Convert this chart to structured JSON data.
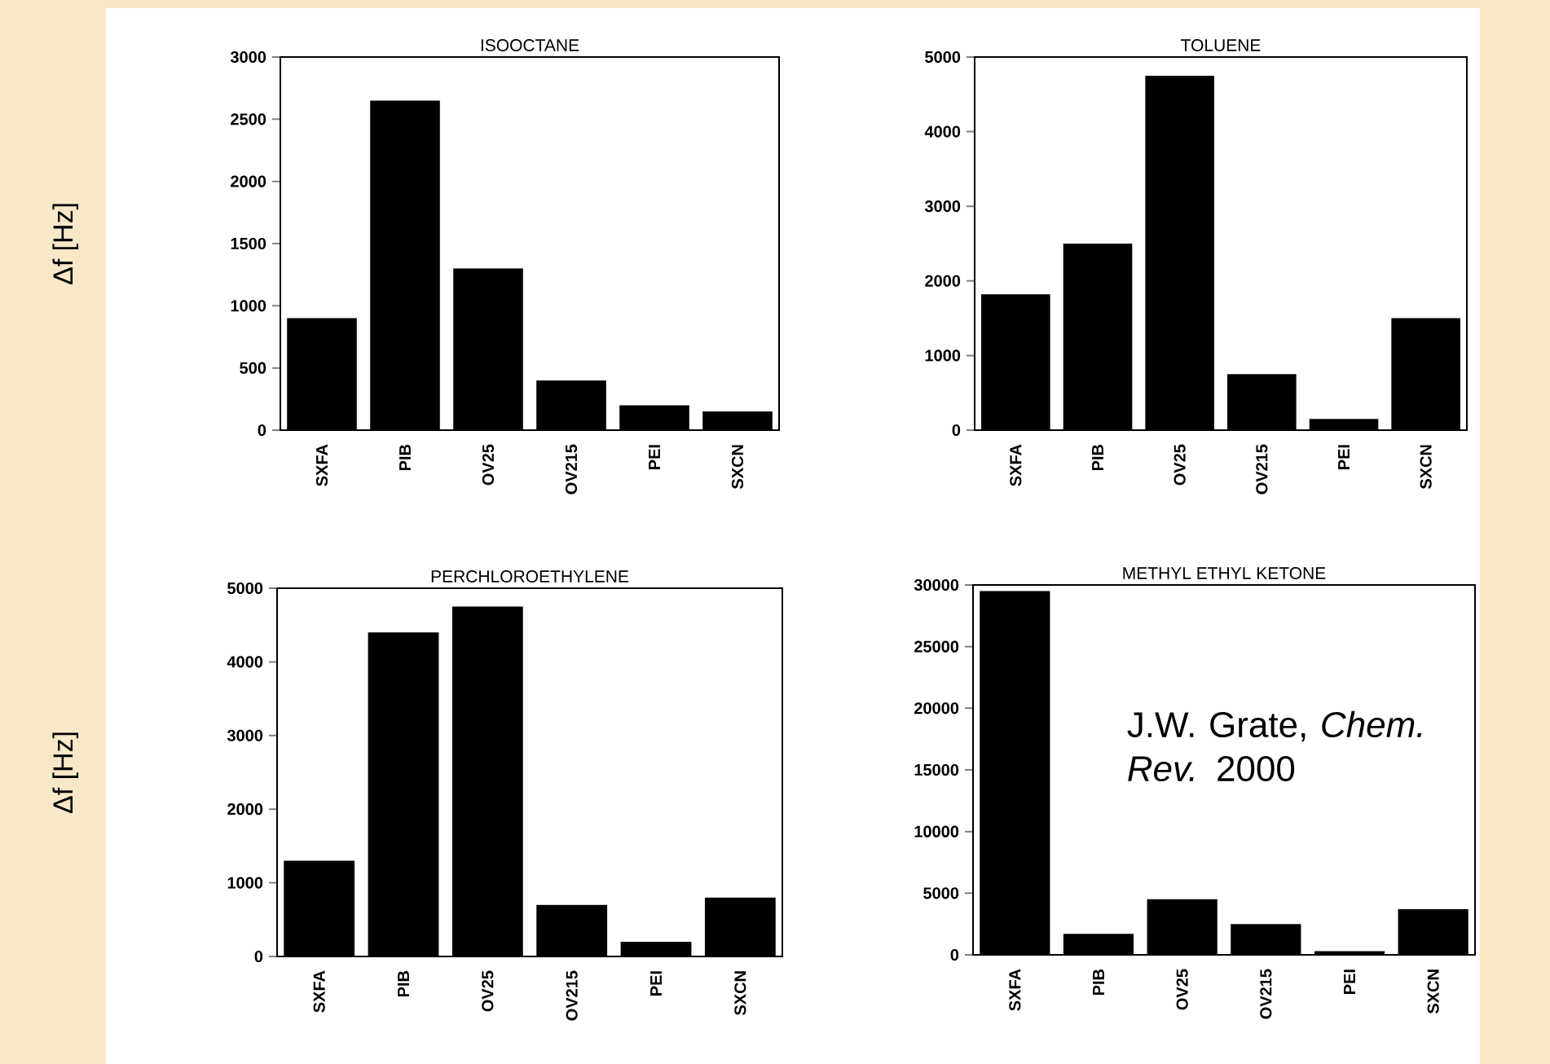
{
  "chart_data": [
    {
      "type": "bar",
      "title": "ISOOCTANE",
      "ylabel": "Δf  [Hz]",
      "color": "#000000",
      "categories": [
        "SXFA",
        "PIB",
        "OV25",
        "OV215",
        "PEI",
        "SXCN"
      ],
      "values": [
        900,
        2650,
        1300,
        400,
        200,
        150
      ],
      "ylim": [
        0,
        3000
      ],
      "yticks": [
        0,
        500,
        1000,
        1500,
        2000,
        2500,
        3000
      ]
    },
    {
      "type": "bar",
      "title": "TOLUENE",
      "color": "#000000",
      "categories": [
        "SXFA",
        "PIB",
        "OV25",
        "OV215",
        "PEI",
        "SXCN"
      ],
      "values": [
        1820,
        2500,
        4750,
        750,
        150,
        1500
      ],
      "ylim": [
        0,
        5000
      ],
      "yticks": [
        0,
        1000,
        2000,
        3000,
        4000,
        5000
      ]
    },
    {
      "type": "bar",
      "title": "PERCHLOROETHYLENE",
      "ylabel": "Δf  [Hz]",
      "color": "#000000",
      "categories": [
        "SXFA",
        "PIB",
        "OV25",
        "OV215",
        "PEI",
        "SXCN"
      ],
      "values": [
        1300,
        4400,
        4750,
        700,
        200,
        800
      ],
      "ylim": [
        0,
        5000
      ],
      "yticks": [
        0,
        1000,
        2000,
        3000,
        4000,
        5000
      ]
    },
    {
      "type": "bar",
      "title": "METHYL ETHYL KETONE",
      "annotations": [
        "J.W. Grate, *Chem. Rev.* 2000"
      ],
      "color": "#000000",
      "categories": [
        "SXFA",
        "PIB",
        "OV25",
        "OV215",
        "PEI",
        "SXCN"
      ],
      "values": [
        29500,
        1700,
        4500,
        2500,
        300,
        3700
      ],
      "ylim": [
        0,
        30000
      ],
      "yticks": [
        0,
        5000,
        10000,
        15000,
        20000,
        25000,
        30000
      ]
    }
  ]
}
